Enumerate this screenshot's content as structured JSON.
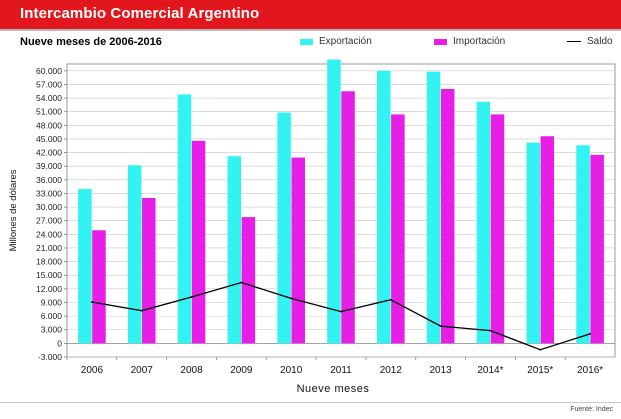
{
  "header": {
    "title": "Intercambio Comercial Argentino",
    "subtitle": "Nueve meses de 2006-2016"
  },
  "footer": {
    "source": "Fuente: Indec"
  },
  "colors": {
    "title_bar": "#e2171d",
    "exportacion": "#33f2f2",
    "importacion": "#e61ee6",
    "saldo": "#000000"
  },
  "chart_data": {
    "type": "bar",
    "title": "",
    "xlabel": "Nueve meses",
    "ylabel": "Millones de dólares",
    "ylim": [
      -3000,
      61500
    ],
    "yticks": [
      -3000,
      0,
      3000,
      6000,
      9000,
      12000,
      15000,
      18000,
      21000,
      24000,
      27000,
      30000,
      33000,
      36000,
      39000,
      42000,
      45000,
      48000,
      51000,
      54000,
      57000,
      60000
    ],
    "ytick_labels": [
      "-3.000",
      "0",
      "3.000",
      "6.000",
      "9.000",
      "12.000",
      "15.000",
      "18.000",
      "21.000",
      "24.000",
      "27.000",
      "30.000",
      "33.000",
      "36.000",
      "39.000",
      "42.000",
      "45.000",
      "48.000",
      "51.000",
      "54.000",
      "57.000",
      "60.000"
    ],
    "categories": [
      "2006",
      "2007",
      "2008",
      "2009",
      "2010",
      "2011",
      "2012",
      "2013",
      "2014*",
      "2015*",
      "2016*"
    ],
    "grid": true,
    "legend_position": "top",
    "series": [
      {
        "name": "Exportación",
        "type": "bar",
        "color": "#33f2f2",
        "values": [
          34000,
          39200,
          54800,
          41200,
          50800,
          62500,
          60000,
          59800,
          53200,
          44200,
          43600
        ]
      },
      {
        "name": "Importación",
        "type": "bar",
        "color": "#e61ee6",
        "values": [
          24900,
          32000,
          44600,
          27800,
          40900,
          55500,
          50400,
          56000,
          50400,
          45600,
          41500
        ]
      },
      {
        "name": "Saldo",
        "type": "line",
        "color": "#000000",
        "values": [
          9100,
          7200,
          10200,
          13400,
          9900,
          7000,
          9600,
          3800,
          2800,
          -1400,
          2100
        ]
      }
    ]
  }
}
